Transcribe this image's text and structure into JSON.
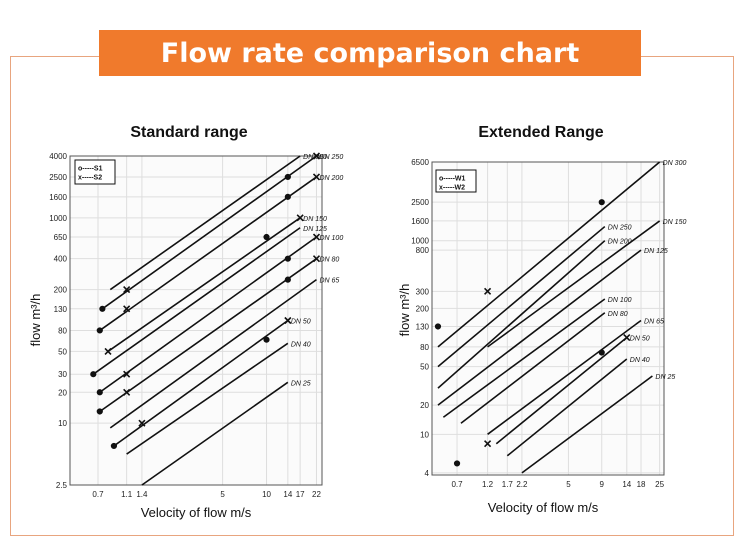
{
  "title": "Flow rate comparison chart",
  "colors": {
    "accent": "#f07a2c",
    "frame": "#e8a57f",
    "line": "#111111",
    "grid": "#dedede"
  },
  "chart_data": [
    {
      "type": "line",
      "title": "Standard range",
      "xlabel": "Velocity of flow m/s",
      "ylabel": "flow m³/h",
      "log_scale": {
        "x": true,
        "y": true
      },
      "grid": true,
      "legend_position": "top-left",
      "x_ticks": [
        "0.7",
        "1.1",
        "1.4",
        "5",
        "10",
        "14",
        "17",
        "22"
      ],
      "y_ticks": [
        "2.5",
        "10",
        "20",
        "30",
        "50",
        "80",
        "130",
        "200",
        "400",
        "650",
        "1000",
        "1600",
        "2500",
        "4000"
      ],
      "legend": [
        "S1",
        "S2"
      ],
      "series": [
        {
          "label": "DN 300",
          "x": [
            0.85,
            17
          ],
          "y": [
            200,
            4000
          ],
          "points": []
        },
        {
          "label": "DN 250",
          "x": [
            0.75,
            22
          ],
          "y": [
            130,
            4000
          ],
          "points": [
            {
              "x": 0.75,
              "y": 130,
              "mark": "o"
            },
            {
              "x": 14,
              "y": 2500,
              "mark": "o"
            },
            {
              "x": 22,
              "y": 4000,
              "mark": "x"
            }
          ]
        },
        {
          "label": "DN 200",
          "x": [
            0.72,
            22
          ],
          "y": [
            80,
            2500
          ],
          "points": [
            {
              "x": 0.72,
              "y": 80,
              "mark": "o"
            },
            {
              "x": 14,
              "y": 1600,
              "mark": "o"
            },
            {
              "x": 22,
              "y": 2500,
              "mark": "x"
            }
          ]
        },
        {
          "label": "DN 150",
          "x": [
            0.82,
            17
          ],
          "y": [
            50,
            1000
          ],
          "points": [
            {
              "x": 0.82,
              "y": 50,
              "mark": "x"
            },
            {
              "x": 10,
              "y": 650,
              "mark": "o"
            },
            {
              "x": 17,
              "y": 1000,
              "mark": "x"
            }
          ]
        },
        {
          "label": "DN 125",
          "x": [
            0.65,
            17
          ],
          "y": [
            30,
            800
          ],
          "points": [
            {
              "x": 0.65,
              "y": 30,
              "mark": "o"
            }
          ]
        },
        {
          "label": "DN 100",
          "x": [
            0.72,
            22
          ],
          "y": [
            20,
            650
          ],
          "points": [
            {
              "x": 0.72,
              "y": 20,
              "mark": "o"
            },
            {
              "x": 14,
              "y": 400,
              "mark": "o"
            },
            {
              "x": 22,
              "y": 650,
              "mark": "x"
            }
          ]
        },
        {
          "label": "DN 80",
          "x": [
            0.72,
            22
          ],
          "y": [
            13,
            400
          ],
          "points": [
            {
              "x": 0.72,
              "y": 13,
              "mark": "o"
            },
            {
              "x": 14,
              "y": 250,
              "mark": "o"
            },
            {
              "x": 22,
              "y": 400,
              "mark": "x"
            }
          ]
        },
        {
          "label": "DN 65",
          "x": [
            0.85,
            22
          ],
          "y": [
            9,
            250
          ],
          "points": []
        },
        {
          "label": "DN 50",
          "x": [
            0.9,
            14
          ],
          "y": [
            6,
            100
          ],
          "points": [
            {
              "x": 0.9,
              "y": 6,
              "mark": "o"
            },
            {
              "x": 10,
              "y": 65,
              "mark": "o"
            },
            {
              "x": 14,
              "y": 100,
              "mark": "x"
            }
          ]
        },
        {
          "label": "DN 40",
          "x": [
            1.1,
            14
          ],
          "y": [
            5,
            60
          ],
          "points": []
        },
        {
          "label": "DN 25",
          "x": [
            1.4,
            14
          ],
          "y": [
            2.5,
            25
          ],
          "points": []
        }
      ],
      "extra_marks": [
        {
          "x": 1.1,
          "y": 200,
          "mark": "x"
        },
        {
          "x": 1.1,
          "y": 130,
          "mark": "x"
        },
        {
          "x": 1.1,
          "y": 30,
          "mark": "x"
        },
        {
          "x": 1.1,
          "y": 20,
          "mark": "x"
        },
        {
          "x": 1.4,
          "y": 10,
          "mark": "x"
        }
      ]
    },
    {
      "type": "line",
      "title": "Extended Range",
      "xlabel": "Velocity of flow m/s",
      "ylabel": "flow m³/h",
      "log_scale": {
        "x": true,
        "y": true
      },
      "grid": true,
      "legend_position": "top-left",
      "x_ticks": [
        "0.7",
        "1.2",
        "1.7",
        "2.2",
        "5",
        "9",
        "14",
        "18",
        "25"
      ],
      "y_ticks": [
        "4",
        "10",
        "20",
        "50",
        "80",
        "130",
        "200",
        "300",
        "800",
        "1000",
        "1600",
        "2500",
        "6500"
      ],
      "legend": [
        "W1",
        "W2"
      ],
      "series": [
        {
          "label": "DN 300",
          "x": [
            0.5,
            25
          ],
          "y": [
            80,
            6500
          ],
          "points": [
            {
              "x": 9,
              "y": 2500,
              "mark": "o"
            }
          ]
        },
        {
          "label": "DN 250",
          "x": [
            0.5,
            9.5
          ],
          "y": [
            50,
            1400
          ],
          "points": []
        },
        {
          "label": "DN 200",
          "x": [
            0.5,
            9.5
          ],
          "y": [
            30,
            1000
          ],
          "points": []
        },
        {
          "label": "DN 150",
          "x": [
            1.2,
            25
          ],
          "y": [
            80,
            1600
          ],
          "points": []
        },
        {
          "label": "DN 125",
          "x": [
            0.5,
            18
          ],
          "y": [
            20,
            800
          ],
          "points": []
        },
        {
          "label": "DN 100",
          "x": [
            0.55,
            9.5
          ],
          "y": [
            15,
            250
          ],
          "points": []
        },
        {
          "label": "DN 80",
          "x": [
            0.75,
            9.5
          ],
          "y": [
            13,
            180
          ],
          "points": []
        },
        {
          "label": "DN 65",
          "x": [
            1.2,
            18
          ],
          "y": [
            10,
            150
          ],
          "points": []
        },
        {
          "label": "DN 50",
          "x": [
            1.4,
            14
          ],
          "y": [
            8,
            100
          ],
          "points": [
            {
              "x": 9,
              "y": 70,
              "mark": "o"
            },
            {
              "x": 14,
              "y": 100,
              "mark": "x"
            }
          ]
        },
        {
          "label": "DN 40",
          "x": [
            1.7,
            14
          ],
          "y": [
            6,
            60
          ],
          "points": []
        },
        {
          "label": "DN 25",
          "x": [
            2.2,
            22
          ],
          "y": [
            4,
            40
          ],
          "points": []
        }
      ],
      "extra_marks": [
        {
          "x": 0.5,
          "y": 130,
          "mark": "o"
        },
        {
          "x": 1.2,
          "y": 300,
          "mark": "x"
        },
        {
          "x": 0.7,
          "y": 5,
          "mark": "o"
        },
        {
          "x": 1.2,
          "y": 8,
          "mark": "x"
        }
      ]
    }
  ],
  "series_labels_standard": {
    "DN 300": "DN 300",
    "DN 250": "DN 250",
    "DN 200": "DN 200",
    "DN 150": "DN 150",
    "DN 125": "DN 125",
    "DN 100": "DN 100",
    "DN 80": "DN 80",
    "DN 65": "DN 65",
    "DN 50": "DN 50",
    "DN 40": "DN 40",
    "DN 25": "DN 25"
  }
}
